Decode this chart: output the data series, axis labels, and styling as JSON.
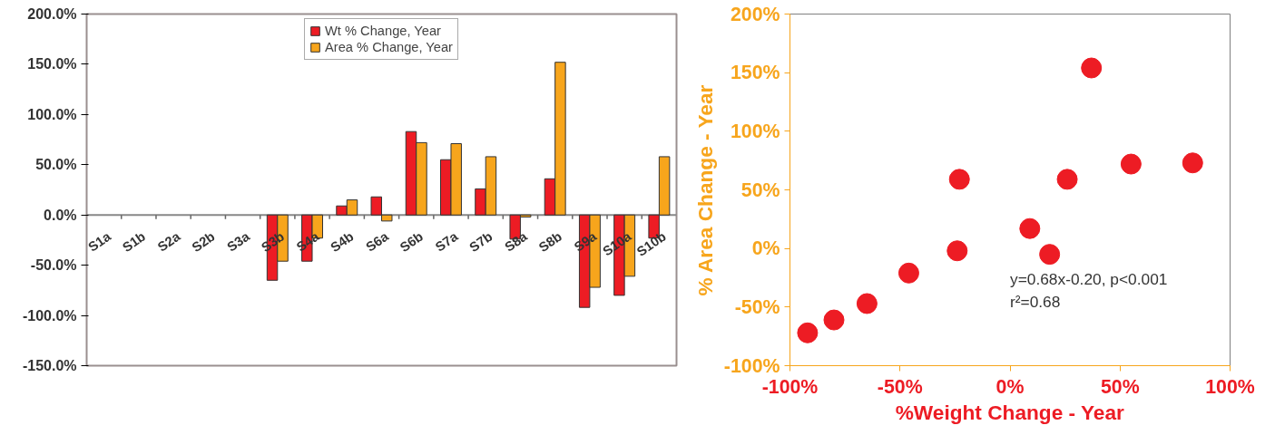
{
  "chart_data": [
    {
      "type": "bar",
      "categories": [
        "S1a",
        "S1b",
        "S2a",
        "S2b",
        "S3a",
        "S3b",
        "S4a",
        "S4b",
        "S6a",
        "S6b",
        "S7a",
        "S7b",
        "S8a",
        "S8b",
        "S9a",
        "S10a",
        "S10b"
      ],
      "series": [
        {
          "name": "Wt % Change, Year",
          "color": "#ed1c24",
          "values": [
            null,
            null,
            null,
            null,
            null,
            -65,
            -46,
            9,
            18,
            83,
            55,
            26,
            -24,
            36,
            -92,
            -80,
            -23
          ]
        },
        {
          "name": "Area % Change, Year",
          "color": "#f7a51c",
          "values": [
            null,
            null,
            null,
            null,
            null,
            -46,
            -23,
            15,
            -6,
            72,
            71,
            58,
            -2,
            152,
            -72,
            -61,
            58
          ]
        }
      ],
      "ylim": [
        -150,
        200
      ],
      "yticks": [
        {
          "value": -150,
          "label": "-150.0%"
        },
        {
          "value": -100,
          "label": "-100.0%"
        },
        {
          "value": -50,
          "label": "-50.0%"
        },
        {
          "value": 0,
          "label": "0.0%"
        },
        {
          "value": 50,
          "label": "50.0%"
        },
        {
          "value": 100,
          "label": "100.0%"
        },
        {
          "value": 150,
          "label": "150.0%"
        },
        {
          "value": 200,
          "label": "200.0%"
        }
      ],
      "legend": "top",
      "grid": false
    },
    {
      "type": "scatter",
      "xlabel": "%Weight Change - Year",
      "ylabel": "% Area Change - Year",
      "x": [
        -92,
        -80,
        -65,
        -46,
        -24,
        -23,
        9,
        18,
        26,
        37,
        55,
        83
      ],
      "values": [
        -72,
        -61,
        -47,
        -21,
        -2,
        59,
        17,
        -5,
        59,
        154,
        72,
        73
      ],
      "color": "#ed1c24",
      "marker": "circle",
      "xlim": [
        -100,
        100
      ],
      "ylim": [
        -100,
        200
      ],
      "xticks": [
        {
          "value": -100,
          "label": "-100%"
        },
        {
          "value": -50,
          "label": "-50%"
        },
        {
          "value": 0,
          "label": "0%"
        },
        {
          "value": 50,
          "label": "50%"
        },
        {
          "value": 100,
          "label": "100%"
        }
      ],
      "yticks": [
        {
          "value": -100,
          "label": "-100%"
        },
        {
          "value": -50,
          "label": "-50%"
        },
        {
          "value": 0,
          "label": "0%"
        },
        {
          "value": 50,
          "label": "50%"
        },
        {
          "value": 100,
          "label": "100%"
        },
        {
          "value": 150,
          "label": "150%"
        },
        {
          "value": 200,
          "label": "200%"
        }
      ],
      "annotations": [
        "y=0.68x-0.20, p<0.001",
        "r²=0.68"
      ],
      "grid": false
    }
  ]
}
